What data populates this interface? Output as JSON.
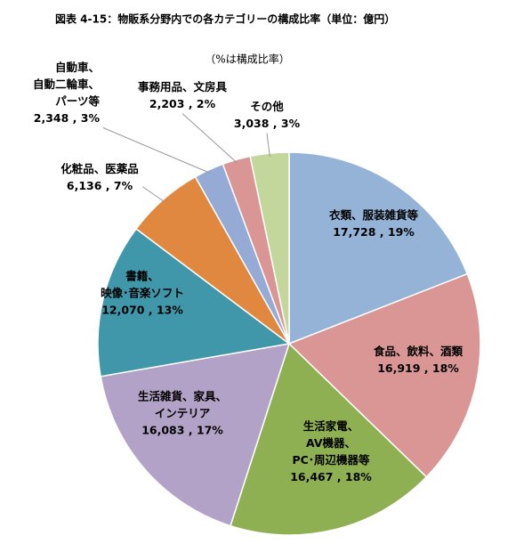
{
  "chart_data": {
    "type": "pie",
    "title": "図表 4-15：物販系分野内での各カテゴリーの構成比率（単位：億円）",
    "subtitle": "（%は構成比率）",
    "categories": [
      [
        "衣類、服装雑貨等"
      ],
      [
        "食品、飲料、酒類"
      ],
      [
        "生活家電、",
        "AV機器、",
        "PC･周辺機器等"
      ],
      [
        "生活雑貨、家具、",
        "インテリア"
      ],
      [
        "書籍、",
        "映像･音楽ソフト"
      ],
      [
        "化粧品、医薬品"
      ],
      [
        "自動車、",
        "自動二輪車、",
        "パーツ等"
      ],
      [
        "事務用品、文房具"
      ],
      [
        "その他"
      ]
    ],
    "values": [
      17728,
      16919,
      16467,
      16083,
      12070,
      6136,
      2348,
      2203,
      3038
    ],
    "value_labels": [
      "17,728 , 19%",
      "16,919 , 18%",
      "16,467 , 18%",
      "16,083 , 17%",
      "12,070 , 13%",
      "6,136 , 7%",
      "2,348 , 3%",
      "2,203 , 2%",
      "3,038 , 3%"
    ],
    "colors": [
      "#95b3d7",
      "#d99694",
      "#8fb052",
      "#b3a2c7",
      "#4197aa",
      "#e0883f",
      "#95abd6",
      "#d99694",
      "#c3d69b"
    ]
  }
}
